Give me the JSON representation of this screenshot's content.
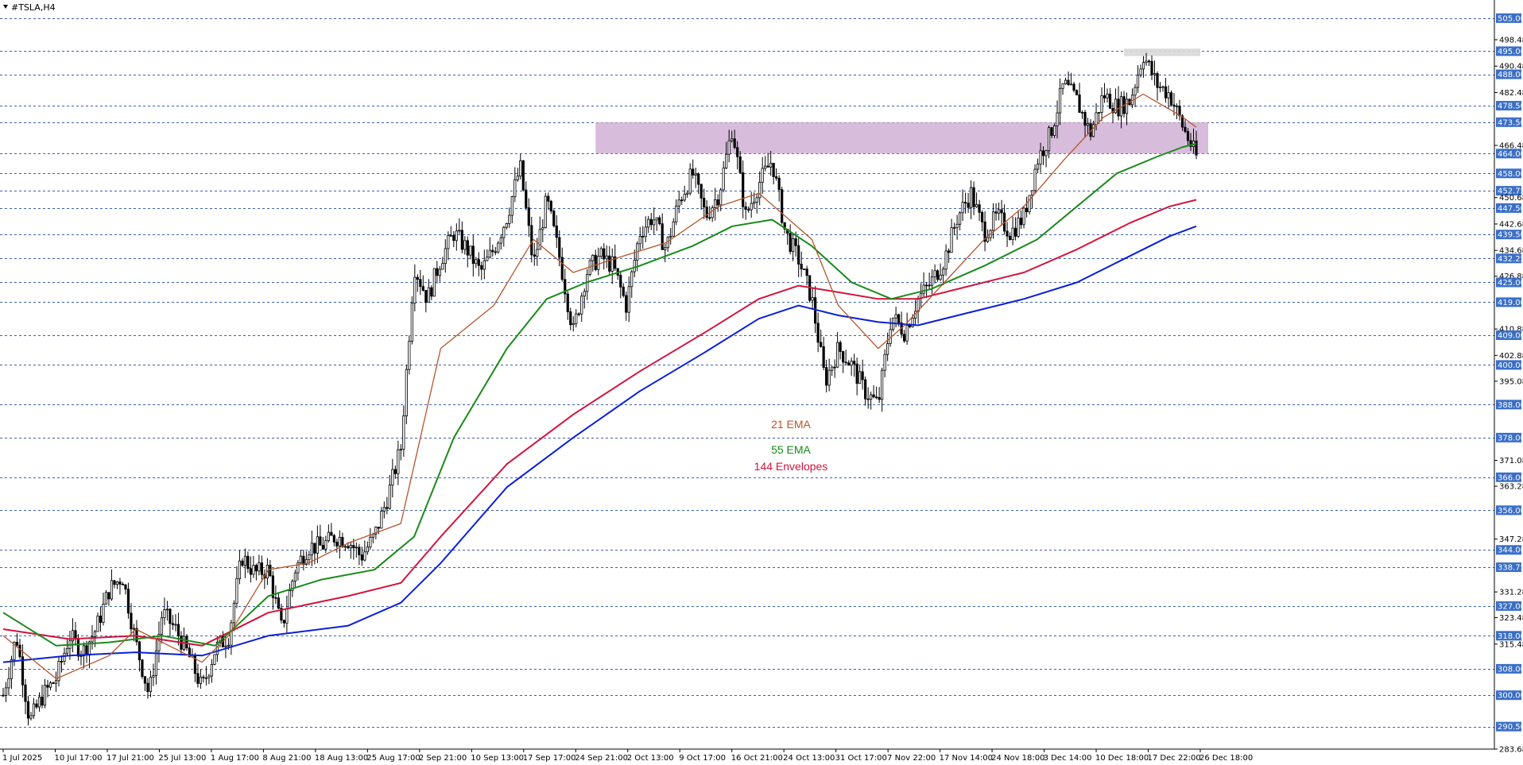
{
  "symbol": "#TSLA,H4",
  "colors": {
    "background": "#ffffff",
    "candle": "#000000",
    "ema21": "#b5552c",
    "ema55": "#1a8a1a",
    "env144": "#d1143c",
    "ema200": "#0a1fd6",
    "zone": "#c9a7cf",
    "hline": "#3a5fb0",
    "tag": "#3a6fc8"
  },
  "legend": [
    {
      "label": "21 EMA",
      "color": "#b5552c"
    },
    {
      "label": "55 EMA",
      "color": "#1a8a1a"
    },
    {
      "label": "144 Envelopes",
      "color": "#d1143c"
    }
  ],
  "chart_data": {
    "type": "candlestick",
    "ylim": [
      283.68,
      510.5
    ],
    "x_labels": [
      "1 Jul 2025",
      "10 Jul 17:00",
      "17 Jul 21:00",
      "25 Jul 13:00",
      "1 Aug 17:00",
      "8 Aug 21:00",
      "18 Aug 13:00",
      "25 Aug 17:00",
      "2 Sep 21:00",
      "10 Sep 13:00",
      "17 Sep 17:00",
      "24 Sep 21:00",
      "2 Oct 13:00",
      "9 Oct 17:00",
      "16 Oct 21:00",
      "24 Oct 13:00",
      "31 Oct 17:00",
      "7 Nov 22:00",
      "17 Nov 14:00",
      "24 Nov 18:00",
      "3 Dec 14:00",
      "10 Dec 18:00",
      "17 Dec 22:00",
      "26 Dec 18:00"
    ],
    "y_ticks": [
      505.0,
      498.48,
      495.0,
      490.48,
      488.0,
      482.48,
      478.5,
      473.5,
      466.48,
      464.0,
      458.0,
      452.75,
      450.68,
      447.5,
      442.68,
      439.5,
      434.68,
      432.25,
      426.88,
      425.0,
      419.0,
      410.88,
      409.0,
      402.88,
      400.0,
      395.08,
      388.0,
      378.0,
      371.08,
      366.0,
      363.28,
      356.0,
      347.28,
      344.0,
      338.75,
      331.28,
      327.0,
      323.48,
      318.0,
      315.48,
      308.0,
      300.0,
      290.5,
      283.68
    ],
    "levels": [
      505.0,
      495.0,
      488.0,
      478.5,
      473.5,
      464.0,
      458.0,
      452.75,
      447.5,
      439.5,
      432.25,
      425.0,
      419.0,
      409.0,
      400.0,
      388.0,
      378.0,
      366.0,
      356.0,
      344.0,
      338.75,
      327.0,
      318.0,
      308.0,
      300.0,
      290.5
    ],
    "zones": [
      {
        "from": "24 Sep 21:00",
        "to": "26 Dec 18:00",
        "low": 464.0,
        "high": 473.5
      },
      {
        "from": "10 Dec 18:00",
        "to": "26 Dec 18:00",
        "low": 493.5,
        "high": 495.8
      }
    ],
    "price_path": [
      [
        0,
        300
      ],
      [
        1,
        318
      ],
      [
        2,
        292
      ],
      [
        3,
        300
      ],
      [
        4,
        305
      ],
      [
        5,
        318
      ],
      [
        6,
        313
      ],
      [
        7,
        320
      ],
      [
        8,
        332
      ],
      [
        9,
        336
      ],
      [
        10,
        316
      ],
      [
        11,
        300
      ],
      [
        12,
        325
      ],
      [
        13,
        320
      ],
      [
        14,
        312
      ],
      [
        15,
        302
      ],
      [
        16,
        314
      ],
      [
        17,
        318
      ],
      [
        18,
        342
      ],
      [
        19,
        337
      ],
      [
        20,
        338
      ],
      [
        21,
        320
      ],
      [
        22,
        338
      ],
      [
        23,
        345
      ],
      [
        24,
        345
      ],
      [
        25,
        348
      ],
      [
        26,
        347
      ],
      [
        27,
        342
      ],
      [
        28,
        348
      ],
      [
        29,
        360
      ],
      [
        30,
        375
      ],
      [
        31,
        430
      ],
      [
        32,
        420
      ],
      [
        33,
        432
      ],
      [
        34,
        440
      ],
      [
        35,
        435
      ],
      [
        36,
        428
      ],
      [
        37,
        435
      ],
      [
        38,
        445
      ],
      [
        39,
        460
      ],
      [
        40,
        430
      ],
      [
        41,
        450
      ],
      [
        42,
        432
      ],
      [
        43,
        410
      ],
      [
        44,
        428
      ],
      [
        45,
        433
      ],
      [
        46,
        430
      ],
      [
        47,
        418
      ],
      [
        48,
        440
      ],
      [
        49,
        445
      ],
      [
        50,
        435
      ],
      [
        51,
        450
      ],
      [
        52,
        458
      ],
      [
        53,
        445
      ],
      [
        54,
        452
      ],
      [
        55,
        472
      ],
      [
        56,
        445
      ],
      [
        57,
        455
      ],
      [
        58,
        462
      ],
      [
        59,
        440
      ],
      [
        60,
        432
      ],
      [
        61,
        420
      ],
      [
        62,
        395
      ],
      [
        63,
        405
      ],
      [
        64,
        400
      ],
      [
        65,
        392
      ],
      [
        66,
        388
      ],
      [
        67,
        415
      ],
      [
        68,
        410
      ],
      [
        69,
        420
      ],
      [
        70,
        425
      ],
      [
        71,
        432
      ],
      [
        72,
        445
      ],
      [
        73,
        452
      ],
      [
        74,
        440
      ],
      [
        75,
        445
      ],
      [
        76,
        440
      ],
      [
        77,
        445
      ],
      [
        78,
        462
      ],
      [
        79,
        470
      ],
      [
        80,
        485
      ],
      [
        81,
        480
      ],
      [
        82,
        470
      ],
      [
        83,
        482
      ],
      [
        84,
        478
      ],
      [
        85,
        480
      ],
      [
        86,
        494
      ],
      [
        87,
        485
      ],
      [
        88,
        482
      ],
      [
        89,
        472
      ],
      [
        90,
        463
      ]
    ],
    "ema21": [
      [
        0,
        318
      ],
      [
        4,
        305
      ],
      [
        8,
        312
      ],
      [
        10,
        320
      ],
      [
        12,
        316
      ],
      [
        15,
        310
      ],
      [
        17,
        318
      ],
      [
        20,
        338
      ],
      [
        23,
        340
      ],
      [
        26,
        346
      ],
      [
        30,
        352
      ],
      [
        33,
        405
      ],
      [
        37,
        418
      ],
      [
        40,
        438
      ],
      [
        43,
        428
      ],
      [
        46,
        432
      ],
      [
        50,
        437
      ],
      [
        54,
        448
      ],
      [
        57,
        452
      ],
      [
        59,
        445
      ],
      [
        61,
        438
      ],
      [
        63,
        418
      ],
      [
        66,
        405
      ],
      [
        68,
        412
      ],
      [
        71,
        425
      ],
      [
        74,
        438
      ],
      [
        77,
        448
      ],
      [
        80,
        462
      ],
      [
        83,
        475
      ],
      [
        86,
        482
      ],
      [
        89,
        475
      ],
      [
        90,
        472
      ]
    ],
    "ema55": [
      [
        0,
        325
      ],
      [
        4,
        315
      ],
      [
        8,
        316
      ],
      [
        12,
        318
      ],
      [
        16,
        315
      ],
      [
        20,
        330
      ],
      [
        24,
        335
      ],
      [
        28,
        338
      ],
      [
        31,
        348
      ],
      [
        34,
        378
      ],
      [
        38,
        405
      ],
      [
        41,
        420
      ],
      [
        44,
        425
      ],
      [
        48,
        430
      ],
      [
        52,
        436
      ],
      [
        55,
        442
      ],
      [
        58,
        444
      ],
      [
        61,
        436
      ],
      [
        64,
        425
      ],
      [
        67,
        420
      ],
      [
        70,
        423
      ],
      [
        74,
        430
      ],
      [
        78,
        438
      ],
      [
        81,
        448
      ],
      [
        84,
        458
      ],
      [
        87,
        463
      ],
      [
        89,
        466
      ],
      [
        90,
        467
      ]
    ],
    "env144": [
      [
        0,
        320
      ],
      [
        5,
        317
      ],
      [
        10,
        318
      ],
      [
        15,
        315
      ],
      [
        20,
        325
      ],
      [
        26,
        330
      ],
      [
        30,
        334
      ],
      [
        33,
        348
      ],
      [
        38,
        370
      ],
      [
        43,
        385
      ],
      [
        48,
        398
      ],
      [
        53,
        410
      ],
      [
        57,
        420
      ],
      [
        60,
        424
      ],
      [
        63,
        422
      ],
      [
        66,
        420
      ],
      [
        69,
        420
      ],
      [
        73,
        424
      ],
      [
        77,
        428
      ],
      [
        81,
        435
      ],
      [
        85,
        443
      ],
      [
        88,
        448
      ],
      [
        90,
        450
      ]
    ],
    "ema200": [
      [
        0,
        310
      ],
      [
        5,
        312
      ],
      [
        10,
        313
      ],
      [
        15,
        312
      ],
      [
        20,
        318
      ],
      [
        26,
        321
      ],
      [
        30,
        328
      ],
      [
        33,
        340
      ],
      [
        38,
        363
      ],
      [
        43,
        378
      ],
      [
        48,
        392
      ],
      [
        53,
        404
      ],
      [
        57,
        414
      ],
      [
        60,
        418
      ],
      [
        63,
        415
      ],
      [
        66,
        413
      ],
      [
        69,
        412
      ],
      [
        73,
        416
      ],
      [
        77,
        420
      ],
      [
        81,
        425
      ],
      [
        85,
        433
      ],
      [
        88,
        439
      ],
      [
        90,
        442
      ]
    ]
  }
}
